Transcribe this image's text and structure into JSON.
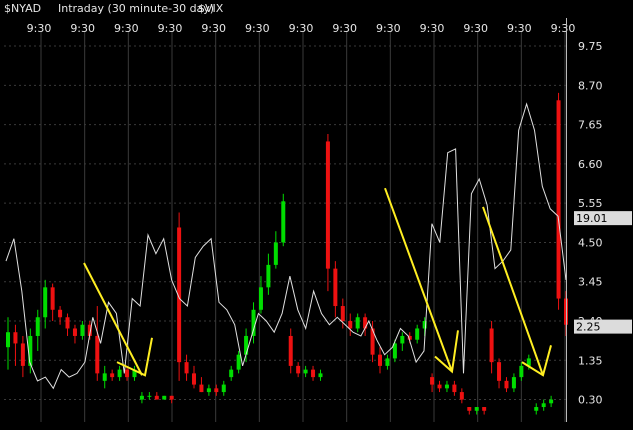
{
  "header": {
    "symbol": "$NYAD",
    "interval": "Intraday (30 minute-30 day)",
    "overlay": "$VIX"
  },
  "colors": {
    "background": "#000000",
    "grid": "#3a3a3a",
    "up_bar": "#00dd00",
    "down_bar": "#ee1111",
    "vix_line": "#e0e0e0",
    "arrow": "#ffee22",
    "text": "#e6e6e6",
    "badge_bg": "#dcdcdc"
  },
  "chart_data": {
    "type": "line",
    "x_ticks": [
      "9:30",
      "9:30",
      "9:30",
      "9:30",
      "9:30",
      "9:30",
      "9:30",
      "9:30",
      "9:30",
      "9:30",
      "9:30",
      "9:30",
      "9:30"
    ],
    "y_ticks": [
      0.3,
      1.35,
      2.4,
      3.45,
      4.5,
      5.55,
      6.6,
      7.65,
      8.7,
      9.75
    ],
    "y_tick_labels": [
      "0.30",
      "1.35",
      "2.40",
      "3.45",
      "4.50",
      "5.55",
      "6.60",
      "7.65",
      "8.70",
      "9.75"
    ],
    "ylim": [
      -0.3,
      10.5
    ],
    "x_count": 30,
    "grid": true,
    "badges": [
      {
        "label": "19.01",
        "y": 5.15
      },
      {
        "label": "2.25",
        "y": 2.25
      }
    ],
    "series": [
      {
        "values": [
          4.0,
          4.6,
          3.2,
          1.3,
          0.8,
          0.9,
          0.6,
          1.1,
          0.9,
          1.0,
          1.3,
          2.5,
          1.8,
          2.9,
          2.6,
          1.0,
          3.0,
          2.8,
          4.7,
          4.2,
          4.6,
          3.5,
          3.0,
          2.8,
          4.1,
          4.4,
          4.6,
          2.9,
          2.7,
          2.3,
          1.2,
          1.9,
          2.6,
          2.4,
          2.1,
          2.6,
          3.6,
          2.7,
          2.2,
          3.2,
          2.6,
          2.3,
          2.5,
          2.3,
          2.1,
          2.0,
          2.4,
          1.9,
          1.5,
          1.7,
          2.2,
          2.0,
          1.3,
          1.6,
          5.0,
          4.5,
          6.9,
          7.0,
          1.0,
          5.8,
          6.2,
          5.5,
          3.8,
          4.0,
          4.3,
          7.5,
          8.2,
          7.5,
          6.0,
          5.4,
          5.2,
          3.5
        ]
      }
    ],
    "bar_series": [
      {
        "bars": [
          [
            1.7,
            2.1,
            1.1,
            2.5
          ],
          [
            2.1,
            1.8,
            1.2,
            2.3
          ],
          [
            1.8,
            1.2,
            0.9,
            2.0
          ],
          [
            1.2,
            2.0,
            1.0,
            2.2
          ],
          [
            2.0,
            2.5,
            1.6,
            2.7
          ],
          [
            2.5,
            3.3,
            2.2,
            3.5
          ],
          [
            3.3,
            2.7,
            2.4,
            3.4
          ],
          [
            2.7,
            2.5,
            2.3,
            2.8
          ],
          [
            2.5,
            2.2,
            2.0,
            2.6
          ],
          [
            2.2,
            2.0,
            1.8,
            2.3
          ],
          [
            2.0,
            2.3,
            1.9,
            2.4
          ],
          [
            2.3,
            2.0,
            1.9,
            2.4
          ],
          [
            2.0,
            1.0,
            0.8,
            2.8
          ],
          [
            0.8,
            1.0,
            0.6,
            1.2
          ],
          [
            1.0,
            0.9,
            0.8,
            1.1
          ],
          [
            0.9,
            1.1,
            0.8,
            1.2
          ],
          [
            1.1,
            0.9,
            0.8,
            1.2
          ],
          [
            0.9,
            1.1,
            0.8,
            1.2
          ],
          [
            0.3,
            0.4,
            0.2,
            0.5
          ],
          [
            0.4,
            0.4,
            0.3,
            0.5
          ],
          [
            0.4,
            0.3,
            0.3,
            0.5
          ],
          [
            0.3,
            0.4,
            0.3,
            0.4
          ],
          [
            0.4,
            0.3,
            0.2,
            0.4
          ],
          [
            4.9,
            1.3,
            0.8,
            5.3
          ],
          [
            1.3,
            1.0,
            0.8,
            1.5
          ],
          [
            1.0,
            0.7,
            0.6,
            1.2
          ],
          [
            0.7,
            0.5,
            0.5,
            0.9
          ],
          [
            0.5,
            0.6,
            0.4,
            0.7
          ],
          [
            0.6,
            0.5,
            0.4,
            0.7
          ],
          [
            0.5,
            0.7,
            0.4,
            0.8
          ],
          [
            0.9,
            1.1,
            0.8,
            1.2
          ],
          [
            1.1,
            1.5,
            1.0,
            1.6
          ],
          [
            1.5,
            2.0,
            1.3,
            2.2
          ],
          [
            2.0,
            2.7,
            1.8,
            2.9
          ],
          [
            2.7,
            3.3,
            2.6,
            3.6
          ],
          [
            3.3,
            3.9,
            3.1,
            4.2
          ],
          [
            3.9,
            4.5,
            3.8,
            4.8
          ],
          [
            4.5,
            5.6,
            4.4,
            5.8
          ],
          [
            2.0,
            1.2,
            1.0,
            2.2
          ],
          [
            1.2,
            1.0,
            0.9,
            1.3
          ],
          [
            1.0,
            1.1,
            0.9,
            1.2
          ],
          [
            1.1,
            0.9,
            0.8,
            1.2
          ],
          [
            0.9,
            1.0,
            0.8,
            1.1
          ],
          [
            7.2,
            3.8,
            3.2,
            7.4
          ],
          [
            3.8,
            2.8,
            2.5,
            4.0
          ],
          [
            2.8,
            2.4,
            2.2,
            3.0
          ],
          [
            2.4,
            2.2,
            2.0,
            2.6
          ],
          [
            2.2,
            2.5,
            2.1,
            2.6
          ],
          [
            2.5,
            2.2,
            2.0,
            2.6
          ],
          [
            2.2,
            1.5,
            1.3,
            2.4
          ],
          [
            1.5,
            1.2,
            1.0,
            1.7
          ],
          [
            1.2,
            1.4,
            1.1,
            1.5
          ],
          [
            1.4,
            1.8,
            1.3,
            1.9
          ],
          [
            1.8,
            2.0,
            1.6,
            2.1
          ],
          [
            2.0,
            1.9,
            1.8,
            2.1
          ],
          [
            1.9,
            2.2,
            1.8,
            2.3
          ],
          [
            2.2,
            2.4,
            2.0,
            2.5
          ],
          [
            0.9,
            0.7,
            0.5,
            1.0
          ],
          [
            0.7,
            0.6,
            0.5,
            0.8
          ],
          [
            0.6,
            0.7,
            0.5,
            0.8
          ],
          [
            0.7,
            0.5,
            0.4,
            0.8
          ],
          [
            0.5,
            0.3,
            0.2,
            0.6
          ],
          [
            0.1,
            0.0,
            -0.1,
            0.1
          ],
          [
            0.0,
            0.1,
            -0.1,
            0.1
          ],
          [
            0.1,
            0.0,
            -0.1,
            0.1
          ],
          [
            2.2,
            1.3,
            1.0,
            2.4
          ],
          [
            1.3,
            0.8,
            0.6,
            1.4
          ],
          [
            0.8,
            0.6,
            0.5,
            0.9
          ],
          [
            0.6,
            0.9,
            0.5,
            1.0
          ],
          [
            0.9,
            1.2,
            0.8,
            1.3
          ],
          [
            1.2,
            1.4,
            1.1,
            1.5
          ],
          [
            0.0,
            0.1,
            -0.1,
            0.2
          ],
          [
            0.1,
            0.2,
            0.0,
            0.3
          ],
          [
            0.2,
            0.3,
            0.1,
            0.4
          ],
          [
            8.3,
            3.0,
            2.7,
            8.5
          ],
          [
            3.0,
            2.3,
            2.0,
            3.2
          ]
        ]
      }
    ],
    "annotations": {
      "arrows": [
        {
          "x_from": 84,
          "y_from": 3.95,
          "x_to": 142,
          "y_to": 0.95
        },
        {
          "x_from": 385,
          "y_from": 5.95,
          "x_to": 452,
          "y_to": 1.05
        },
        {
          "x_from": 483,
          "y_from": 5.45,
          "x_to": 543,
          "y_to": 0.95
        }
      ],
      "hooks": [
        {
          "x_from": 117,
          "y_from": 1.3,
          "x_to": 145,
          "y_to": 0.95,
          "x_end": 152,
          "y_end": 1.95
        },
        {
          "x_from": 435,
          "y_from": 1.45,
          "x_to": 452,
          "y_to": 1.05,
          "x_end": 458,
          "y_end": 2.15
        },
        {
          "x_from": 522,
          "y_from": 1.3,
          "x_to": 543,
          "y_to": 0.95,
          "x_end": 551,
          "y_end": 1.75
        }
      ]
    }
  }
}
